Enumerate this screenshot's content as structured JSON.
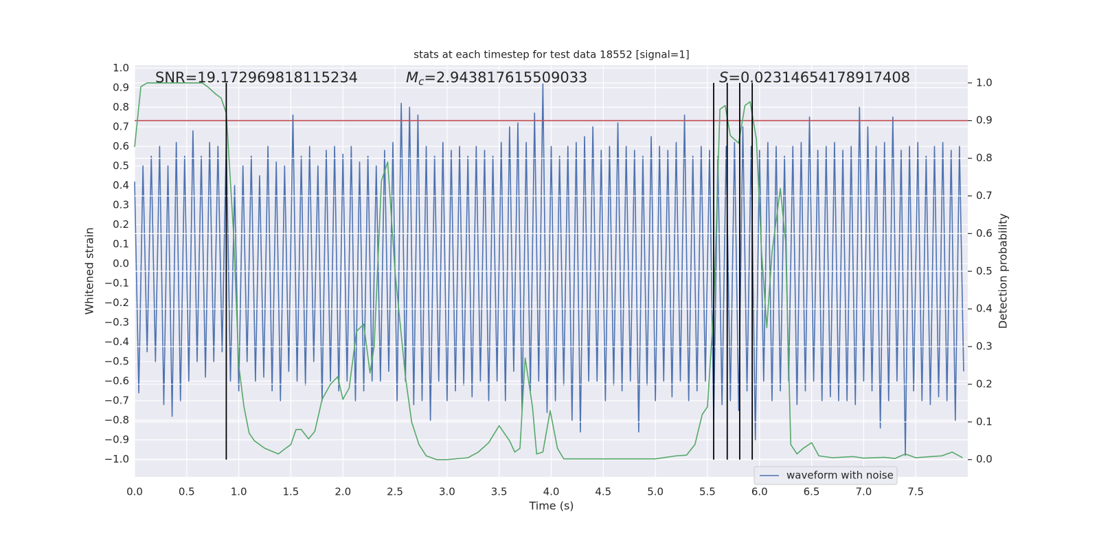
{
  "chart_data": {
    "type": "line",
    "title": "stats at each timestep for test data 18552 [signal=1]",
    "xlabel": "Time (s)",
    "ylabel": "Whitened strain",
    "y2label": "Detection probability",
    "xlim": [
      0,
      8.0
    ],
    "ylim": [
      -1.09,
      1.015
    ],
    "y2lim": [
      -0.046,
      1.047
    ],
    "xticks": [
      {
        "value": 0,
        "label": "0.0"
      },
      {
        "value": 0.5,
        "label": "0.5"
      },
      {
        "value": 1,
        "label": "1.0"
      },
      {
        "value": 1.5,
        "label": "1.5"
      },
      {
        "value": 2,
        "label": "2.0"
      },
      {
        "value": 2.5,
        "label": "2.5"
      },
      {
        "value": 3,
        "label": "3.0"
      },
      {
        "value": 3.5,
        "label": "3.5"
      },
      {
        "value": 4,
        "label": "4.0"
      },
      {
        "value": 4.5,
        "label": "4.5"
      },
      {
        "value": 5,
        "label": "5.0"
      },
      {
        "value": 5.5,
        "label": "5.5"
      },
      {
        "value": 6,
        "label": "6.0"
      },
      {
        "value": 6.5,
        "label": "6.5"
      },
      {
        "value": 7,
        "label": "7.0"
      },
      {
        "value": 7.5,
        "label": "7.5"
      }
    ],
    "yticks": [
      {
        "value": -1,
        "label": "−1.0"
      },
      {
        "value": -0.9,
        "label": "−0.9"
      },
      {
        "value": -0.8,
        "label": "−0.8"
      },
      {
        "value": -0.7,
        "label": "−0.7"
      },
      {
        "value": -0.6,
        "label": "−0.6"
      },
      {
        "value": -0.5,
        "label": "−0.5"
      },
      {
        "value": -0.4,
        "label": "−0.4"
      },
      {
        "value": -0.3,
        "label": "−0.3"
      },
      {
        "value": -0.2,
        "label": "−0.2"
      },
      {
        "value": -0.1,
        "label": "−0.1"
      },
      {
        "value": 0,
        "label": "0.0"
      },
      {
        "value": 0.1,
        "label": "0.1"
      },
      {
        "value": 0.2,
        "label": "0.2"
      },
      {
        "value": 0.3,
        "label": "0.3"
      },
      {
        "value": 0.4,
        "label": "0.4"
      },
      {
        "value": 0.5,
        "label": "0.5"
      },
      {
        "value": 0.6,
        "label": "0.6"
      },
      {
        "value": 0.7,
        "label": "0.7"
      },
      {
        "value": 0.8,
        "label": "0.8"
      },
      {
        "value": 0.9,
        "label": "0.9"
      },
      {
        "value": 1,
        "label": "1.0"
      }
    ],
    "y2ticks": [
      {
        "value": 0,
        "label": "0.0"
      },
      {
        "value": 0.1,
        "label": "0.1"
      },
      {
        "value": 0.2,
        "label": "0.2"
      },
      {
        "value": 0.3,
        "label": "0.3"
      },
      {
        "value": 0.4,
        "label": "0.4"
      },
      {
        "value": 0.5,
        "label": "0.5"
      },
      {
        "value": 0.6,
        "label": "0.6"
      },
      {
        "value": 0.7,
        "label": "0.7"
      },
      {
        "value": 0.8,
        "label": "0.8"
      },
      {
        "value": 0.9,
        "label": "0.9"
      },
      {
        "value": 1,
        "label": "1.0"
      }
    ],
    "grid": true,
    "legend": "lower right",
    "annotations": [
      {
        "text": "SNR=19.172969818115234"
      },
      {
        "symbol": "M",
        "sub": "c",
        "text": "=2.943817615509033"
      },
      {
        "symbol": "S",
        "text": "=0.02314654178917408"
      }
    ],
    "hline": {
      "value": 0.9,
      "axis": "y2",
      "color": "#c44e52"
    },
    "vlines": {
      "x": [
        0.88,
        5.56,
        5.69,
        5.81,
        5.93
      ],
      "range": [
        0,
        1
      ],
      "axis": "y2",
      "color": "#000000"
    },
    "series": [
      {
        "name": "waveform with noise",
        "color": "#4c72b0",
        "x": [
          0,
          0.04,
          0.08,
          0.12,
          0.16,
          0.2,
          0.24,
          0.28,
          0.32,
          0.36,
          0.4,
          0.44,
          0.48,
          0.52,
          0.56,
          0.6,
          0.64,
          0.68,
          0.72,
          0.76,
          0.8,
          0.84,
          0.88,
          0.92,
          0.96,
          1,
          1.04,
          1.08,
          1.12,
          1.16,
          1.2,
          1.24,
          1.28,
          1.32,
          1.36,
          1.4,
          1.44,
          1.48,
          1.52,
          1.56,
          1.6,
          1.64,
          1.68,
          1.72,
          1.76,
          1.8,
          1.84,
          1.88,
          1.92,
          1.96,
          2,
          2.04,
          2.08,
          2.12,
          2.16,
          2.2,
          2.24,
          2.28,
          2.32,
          2.36,
          2.4,
          2.44,
          2.48,
          2.52,
          2.56,
          2.6,
          2.64,
          2.68,
          2.72,
          2.76,
          2.8,
          2.84,
          2.88,
          2.92,
          2.96,
          3,
          3.04,
          3.08,
          3.12,
          3.16,
          3.2,
          3.24,
          3.28,
          3.32,
          3.36,
          3.4,
          3.44,
          3.48,
          3.52,
          3.56,
          3.6,
          3.64,
          3.68,
          3.72,
          3.76,
          3.8,
          3.84,
          3.88,
          3.92,
          3.96,
          4,
          4.04,
          4.08,
          4.12,
          4.16,
          4.2,
          4.24,
          4.28,
          4.32,
          4.36,
          4.4,
          4.44,
          4.48,
          4.52,
          4.56,
          4.6,
          4.64,
          4.68,
          4.72,
          4.76,
          4.8,
          4.84,
          4.88,
          4.92,
          4.96,
          5,
          5.04,
          5.08,
          5.12,
          5.16,
          5.2,
          5.24,
          5.28,
          5.32,
          5.36,
          5.4,
          5.44,
          5.48,
          5.52,
          5.56,
          5.6,
          5.64,
          5.68,
          5.72,
          5.76,
          5.8,
          5.84,
          5.88,
          5.92,
          5.96,
          6,
          6.04,
          6.08,
          6.12,
          6.16,
          6.2,
          6.24,
          6.28,
          6.32,
          6.36,
          6.4,
          6.44,
          6.48,
          6.52,
          6.56,
          6.6,
          6.64,
          6.68,
          6.72,
          6.76,
          6.8,
          6.84,
          6.88,
          6.92,
          6.96,
          7,
          7.04,
          7.08,
          7.12,
          7.16,
          7.2,
          7.24,
          7.28,
          7.32,
          7.36,
          7.4,
          7.44,
          7.48,
          7.52,
          7.56,
          7.6,
          7.64,
          7.68,
          7.72,
          7.76,
          7.8,
          7.84,
          7.88,
          7.92,
          7.96
        ],
        "values": [
          0.42,
          -0.66,
          0.5,
          -0.45,
          0.55,
          -0.5,
          0.6,
          -0.72,
          0.5,
          -0.78,
          0.62,
          -0.7,
          0.55,
          -0.6,
          0.68,
          -0.5,
          0.55,
          -0.58,
          0.62,
          -0.5,
          0.6,
          -0.45,
          0.63,
          -0.6,
          0.4,
          -0.65,
          0.5,
          -0.5,
          0.55,
          -0.6,
          0.45,
          -0.58,
          0.6,
          -0.65,
          0.52,
          -0.7,
          0.5,
          -0.55,
          0.76,
          -0.6,
          0.55,
          -0.62,
          0.6,
          -0.5,
          0.5,
          -0.7,
          0.58,
          -0.6,
          0.6,
          -0.65,
          0.56,
          -0.6,
          0.6,
          -0.7,
          0.52,
          -0.65,
          0.55,
          -0.6,
          0.5,
          -0.6,
          0.58,
          -0.55,
          0.62,
          -0.7,
          0.82,
          -0.6,
          0.8,
          -0.72,
          0.76,
          -0.7,
          0.6,
          -0.8,
          0.55,
          -0.6,
          0.62,
          -0.7,
          0.58,
          -0.65,
          0.6,
          -0.62,
          0.55,
          -0.68,
          0.6,
          -0.6,
          0.58,
          -0.7,
          0.55,
          -0.6,
          0.62,
          -0.7,
          0.7,
          -0.55,
          0.72,
          -0.75,
          0.62,
          -0.65,
          0.77,
          -0.6,
          0.92,
          -0.76,
          0.6,
          -0.7,
          0.55,
          -0.62,
          0.6,
          -0.8,
          0.62,
          -0.86,
          0.65,
          -0.6,
          0.7,
          -0.6,
          0.58,
          -0.7,
          0.6,
          -0.62,
          0.72,
          -0.65,
          0.6,
          -0.6,
          0.58,
          -0.86,
          0.55,
          -0.62,
          0.65,
          -0.7,
          0.6,
          -0.6,
          0.58,
          -0.68,
          0.62,
          -0.6,
          0.76,
          -0.7,
          0.55,
          -0.65,
          0.6,
          -0.6,
          0.58,
          -0.8,
          0.55,
          -0.72,
          0.6,
          -0.7,
          0.62,
          -0.75,
          0.7,
          -0.65,
          0.6,
          -0.9,
          0.58,
          -0.6,
          0.62,
          -0.7,
          0.6,
          -0.65,
          0.55,
          -0.6,
          0.6,
          -0.72,
          0.62,
          -0.65,
          0.75,
          -0.6,
          0.58,
          -0.7,
          0.6,
          -0.68,
          0.62,
          -0.7,
          0.58,
          -0.7,
          0.6,
          -0.72,
          0.8,
          -0.6,
          0.7,
          -0.65,
          0.6,
          -0.84,
          0.62,
          -0.7,
          0.75,
          -0.6,
          0.58,
          -0.98,
          0.6,
          -0.65,
          0.62,
          -0.7,
          0.55,
          -0.72,
          0.6,
          -0.68,
          0.62,
          -0.7,
          0.58,
          -0.8,
          0.6,
          -0.55
        ]
      },
      {
        "color": "#55a868",
        "axis": "y2",
        "x": [
          0,
          0.06,
          0.12,
          0.3,
          0.5,
          0.65,
          0.7,
          0.78,
          0.83,
          0.88,
          0.95,
          1,
          1.05,
          1.1,
          1.15,
          1.25,
          1.38,
          1.45,
          1.5,
          1.55,
          1.6,
          1.67,
          1.73,
          1.8,
          1.88,
          1.95,
          2,
          2.06,
          2.13,
          2.2,
          2.26,
          2.3,
          2.37,
          2.43,
          2.5,
          2.6,
          2.66,
          2.73,
          2.8,
          2.9,
          3,
          3.2,
          3.3,
          3.4,
          3.5,
          3.6,
          3.65,
          3.7,
          3.75,
          3.82,
          3.86,
          3.92,
          3.99,
          4.06,
          4.12,
          4.4,
          4.8,
          5,
          5.2,
          5.3,
          5.38,
          5.45,
          5.5,
          5.56,
          5.62,
          5.67,
          5.72,
          5.8,
          5.86,
          5.91,
          5.97,
          6.02,
          6.07,
          6.12,
          6.2,
          6.25,
          6.3,
          6.36,
          6.42,
          6.5,
          6.57,
          6.7,
          6.9,
          7,
          7.2,
          7.3,
          7.4,
          7.5,
          7.65,
          7.75,
          7.85,
          7.95
        ],
        "values": [
          0.83,
          0.99,
          1,
          1,
          1,
          1,
          0.99,
          0.97,
          0.96,
          0.92,
          0.6,
          0.25,
          0.14,
          0.07,
          0.05,
          0.03,
          0.015,
          0.03,
          0.04,
          0.08,
          0.08,
          0.055,
          0.075,
          0.16,
          0.2,
          0.22,
          0.16,
          0.19,
          0.34,
          0.36,
          0.23,
          0.3,
          0.74,
          0.79,
          0.5,
          0.22,
          0.1,
          0.04,
          0.01,
          0,
          0,
          0.005,
          0.02,
          0.045,
          0.09,
          0.05,
          0.02,
          0.03,
          0.27,
          0.14,
          0.015,
          0.02,
          0.13,
          0.03,
          0.002,
          0.002,
          0.002,
          0.002,
          0.01,
          0.012,
          0.04,
          0.12,
          0.14,
          0.4,
          0.93,
          0.94,
          0.86,
          0.84,
          0.94,
          0.95,
          0.85,
          0.55,
          0.35,
          0.55,
          0.72,
          0.58,
          0.04,
          0.015,
          0.03,
          0.045,
          0.01,
          0.005,
          0.008,
          0.004,
          0.006,
          0.003,
          0.015,
          0.005,
          0.008,
          0.01,
          0.02,
          0.005
        ]
      }
    ]
  }
}
